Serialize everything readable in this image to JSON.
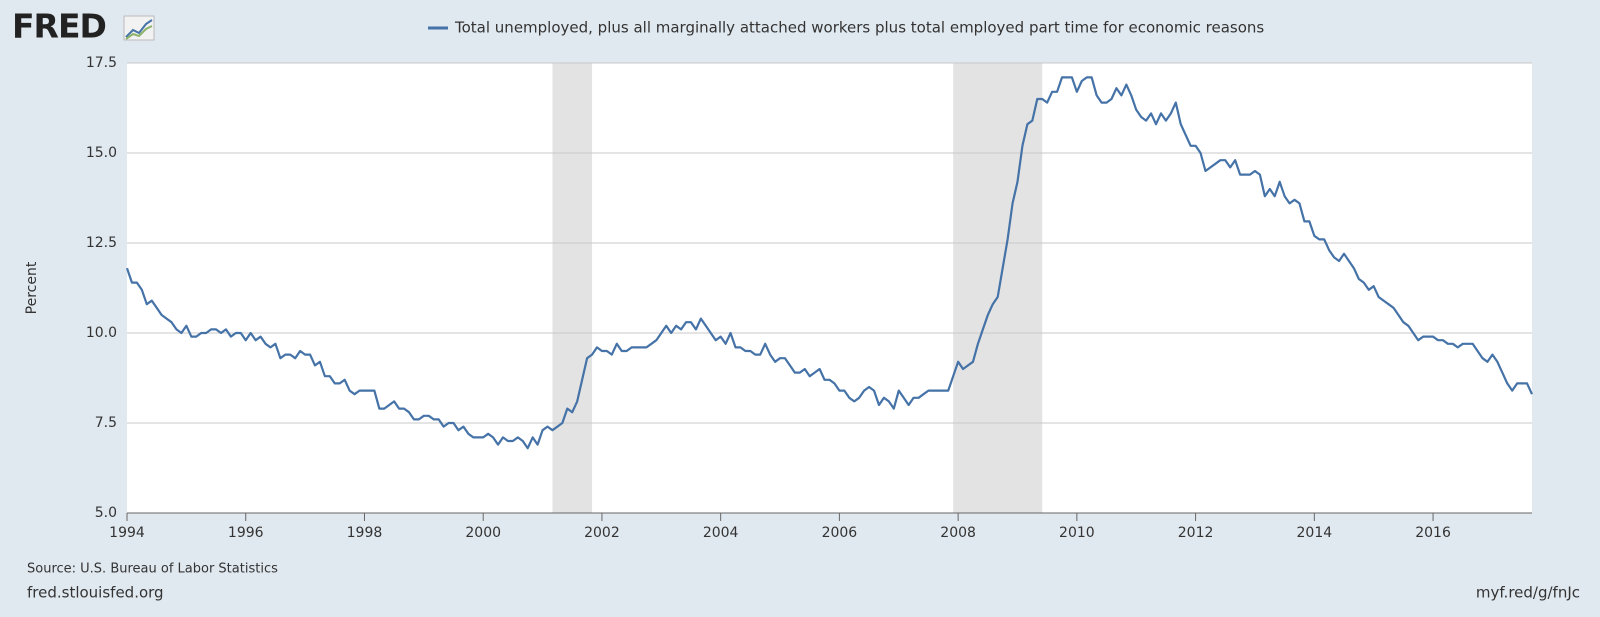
{
  "chart_data": {
    "type": "line",
    "logo": "FRED",
    "y_label": "Percent",
    "source": "Source: U.S. Bureau of Labor Statistics",
    "site": "fred.stlouisfed.org",
    "short_url": "myf.red/g/fnJc",
    "x": [
      "1994-01",
      "1994-02",
      "1994-03",
      "1994-04",
      "1994-05",
      "1994-06",
      "1994-07",
      "1994-08",
      "1994-09",
      "1994-10",
      "1994-11",
      "1994-12",
      "1995-01",
      "1995-02",
      "1995-03",
      "1995-04",
      "1995-05",
      "1995-06",
      "1995-07",
      "1995-08",
      "1995-09",
      "1995-10",
      "1995-11",
      "1995-12",
      "1996-01",
      "1996-02",
      "1996-03",
      "1996-04",
      "1996-05",
      "1996-06",
      "1996-07",
      "1996-08",
      "1996-09",
      "1996-10",
      "1996-11",
      "1996-12",
      "1997-01",
      "1997-02",
      "1997-03",
      "1997-04",
      "1997-05",
      "1997-06",
      "1997-07",
      "1997-08",
      "1997-09",
      "1997-10",
      "1997-11",
      "1997-12",
      "1998-01",
      "1998-02",
      "1998-03",
      "1998-04",
      "1998-05",
      "1998-06",
      "1998-07",
      "1998-08",
      "1998-09",
      "1998-10",
      "1998-11",
      "1998-12",
      "1999-01",
      "1999-02",
      "1999-03",
      "1999-04",
      "1999-05",
      "1999-06",
      "1999-07",
      "1999-08",
      "1999-09",
      "1999-10",
      "1999-11",
      "1999-12",
      "2000-01",
      "2000-02",
      "2000-03",
      "2000-04",
      "2000-05",
      "2000-06",
      "2000-07",
      "2000-08",
      "2000-09",
      "2000-10",
      "2000-11",
      "2000-12",
      "2001-01",
      "2001-02",
      "2001-03",
      "2001-04",
      "2001-05",
      "2001-06",
      "2001-07",
      "2001-08",
      "2001-09",
      "2001-10",
      "2001-11",
      "2001-12",
      "2002-01",
      "2002-02",
      "2002-03",
      "2002-04",
      "2002-05",
      "2002-06",
      "2002-07",
      "2002-08",
      "2002-09",
      "2002-10",
      "2002-11",
      "2002-12",
      "2003-01",
      "2003-02",
      "2003-03",
      "2003-04",
      "2003-05",
      "2003-06",
      "2003-07",
      "2003-08",
      "2003-09",
      "2003-10",
      "2003-11",
      "2003-12",
      "2004-01",
      "2004-02",
      "2004-03",
      "2004-04",
      "2004-05",
      "2004-06",
      "2004-07",
      "2004-08",
      "2004-09",
      "2004-10",
      "2004-11",
      "2004-12",
      "2005-01",
      "2005-02",
      "2005-03",
      "2005-04",
      "2005-05",
      "2005-06",
      "2005-07",
      "2005-08",
      "2005-09",
      "2005-10",
      "2005-11",
      "2005-12",
      "2006-01",
      "2006-02",
      "2006-03",
      "2006-04",
      "2006-05",
      "2006-06",
      "2006-07",
      "2006-08",
      "2006-09",
      "2006-10",
      "2006-11",
      "2006-12",
      "2007-01",
      "2007-02",
      "2007-03",
      "2007-04",
      "2007-05",
      "2007-06",
      "2007-07",
      "2007-08",
      "2007-09",
      "2007-10",
      "2007-11",
      "2007-12",
      "2008-01",
      "2008-02",
      "2008-03",
      "2008-04",
      "2008-05",
      "2008-06",
      "2008-07",
      "2008-08",
      "2008-09",
      "2008-10",
      "2008-11",
      "2008-12",
      "2009-01",
      "2009-02",
      "2009-03",
      "2009-04",
      "2009-05",
      "2009-06",
      "2009-07",
      "2009-08",
      "2009-09",
      "2009-10",
      "2009-11",
      "2009-12",
      "2010-01",
      "2010-02",
      "2010-03",
      "2010-04",
      "2010-05",
      "2010-06",
      "2010-07",
      "2010-08",
      "2010-09",
      "2010-10",
      "2010-11",
      "2010-12",
      "2011-01",
      "2011-02",
      "2011-03",
      "2011-04",
      "2011-05",
      "2011-06",
      "2011-07",
      "2011-08",
      "2011-09",
      "2011-10",
      "2011-11",
      "2011-12",
      "2012-01",
      "2012-02",
      "2012-03",
      "2012-04",
      "2012-05",
      "2012-06",
      "2012-07",
      "2012-08",
      "2012-09",
      "2012-10",
      "2012-11",
      "2012-12",
      "2013-01",
      "2013-02",
      "2013-03",
      "2013-04",
      "2013-05",
      "2013-06",
      "2013-07",
      "2013-08",
      "2013-09",
      "2013-10",
      "2013-11",
      "2013-12",
      "2014-01",
      "2014-02",
      "2014-03",
      "2014-04",
      "2014-05",
      "2014-06",
      "2014-07",
      "2014-08",
      "2014-09",
      "2014-10",
      "2014-11",
      "2014-12",
      "2015-01",
      "2015-02",
      "2015-03",
      "2015-04",
      "2015-05",
      "2015-06",
      "2015-07",
      "2015-08",
      "2015-09",
      "2015-10",
      "2015-11",
      "2015-12",
      "2016-01",
      "2016-02",
      "2016-03",
      "2016-04",
      "2016-05",
      "2016-06",
      "2016-07",
      "2016-08",
      "2016-09",
      "2016-10",
      "2016-11",
      "2016-12",
      "2017-01",
      "2017-02",
      "2017-03",
      "2017-04",
      "2017-05",
      "2017-06",
      "2017-07",
      "2017-08",
      "2017-09"
    ],
    "series": [
      {
        "name": "Total unemployed, plus all marginally attached workers plus total employed part time for economic reasons",
        "color": "#4572a7",
        "values": [
          11.8,
          11.4,
          11.4,
          11.2,
          10.8,
          10.9,
          10.7,
          10.5,
          10.4,
          10.3,
          10.1,
          10.0,
          10.2,
          9.9,
          9.9,
          10.0,
          10.0,
          10.1,
          10.1,
          10.0,
          10.1,
          9.9,
          10.0,
          10.0,
          9.8,
          10.0,
          9.8,
          9.9,
          9.7,
          9.6,
          9.7,
          9.3,
          9.4,
          9.4,
          9.3,
          9.5,
          9.4,
          9.4,
          9.1,
          9.2,
          8.8,
          8.8,
          8.6,
          8.6,
          8.7,
          8.4,
          8.3,
          8.4,
          8.4,
          8.4,
          8.4,
          7.9,
          7.9,
          8.0,
          8.1,
          7.9,
          7.9,
          7.8,
          7.6,
          7.6,
          7.7,
          7.7,
          7.6,
          7.6,
          7.4,
          7.5,
          7.5,
          7.3,
          7.4,
          7.2,
          7.1,
          7.1,
          7.1,
          7.2,
          7.1,
          6.9,
          7.1,
          7.0,
          7.0,
          7.1,
          7.0,
          6.8,
          7.1,
          6.9,
          7.3,
          7.4,
          7.3,
          7.4,
          7.5,
          7.9,
          7.8,
          8.1,
          8.7,
          9.3,
          9.4,
          9.6,
          9.5,
          9.5,
          9.4,
          9.7,
          9.5,
          9.5,
          9.6,
          9.6,
          9.6,
          9.6,
          9.7,
          9.8,
          10.0,
          10.2,
          10.0,
          10.2,
          10.1,
          10.3,
          10.3,
          10.1,
          10.4,
          10.2,
          10.0,
          9.8,
          9.9,
          9.7,
          10.0,
          9.6,
          9.6,
          9.5,
          9.5,
          9.4,
          9.4,
          9.7,
          9.4,
          9.2,
          9.3,
          9.3,
          9.1,
          8.9,
          8.9,
          9.0,
          8.8,
          8.9,
          9.0,
          8.7,
          8.7,
          8.6,
          8.4,
          8.4,
          8.2,
          8.1,
          8.2,
          8.4,
          8.5,
          8.4,
          8.0,
          8.2,
          8.1,
          7.9,
          8.4,
          8.2,
          8.0,
          8.2,
          8.2,
          8.3,
          8.4,
          8.4,
          8.4,
          8.4,
          8.4,
          8.8,
          9.2,
          9.0,
          9.1,
          9.2,
          9.7,
          10.1,
          10.5,
          10.8,
          11.0,
          11.8,
          12.6,
          13.6,
          14.2,
          15.2,
          15.8,
          15.9,
          16.5,
          16.5,
          16.4,
          16.7,
          16.7,
          17.1,
          17.1,
          17.1,
          16.7,
          17.0,
          17.1,
          17.1,
          16.6,
          16.4,
          16.4,
          16.5,
          16.8,
          16.6,
          16.9,
          16.6,
          16.2,
          16.0,
          15.9,
          16.1,
          15.8,
          16.1,
          15.9,
          16.1,
          16.4,
          15.8,
          15.5,
          15.2,
          15.2,
          15.0,
          14.5,
          14.6,
          14.7,
          14.8,
          14.8,
          14.6,
          14.8,
          14.4,
          14.4,
          14.4,
          14.5,
          14.4,
          13.8,
          14.0,
          13.8,
          14.2,
          13.8,
          13.6,
          13.7,
          13.6,
          13.1,
          13.1,
          12.7,
          12.6,
          12.6,
          12.3,
          12.1,
          12.0,
          12.2,
          12.0,
          11.8,
          11.5,
          11.4,
          11.2,
          11.3,
          11.0,
          10.9,
          10.8,
          10.7,
          10.5,
          10.3,
          10.2,
          10.0,
          9.8,
          9.9,
          9.9,
          9.9,
          9.8,
          9.8,
          9.7,
          9.7,
          9.6,
          9.7,
          9.7,
          9.7,
          9.5,
          9.3,
          9.2,
          9.4,
          9.2,
          8.9,
          8.6,
          8.4,
          8.6,
          8.6,
          8.6,
          8.3
        ]
      }
    ],
    "recessions": [
      [
        "2001-03",
        "2001-11"
      ],
      [
        "2007-12",
        "2009-06"
      ]
    ],
    "xlim": [
      "1994-01",
      "2017-09"
    ],
    "xticks": [
      1994,
      1996,
      1998,
      2000,
      2002,
      2004,
      2006,
      2008,
      2010,
      2012,
      2014,
      2016
    ],
    "ylim": [
      5,
      17.5
    ],
    "yticks": [
      {
        "value": 5,
        "label": "5.0"
      },
      7.5,
      {
        "value": 10,
        "label": "10.0"
      },
      {
        "value": 12.5,
        "label": "12.5"
      },
      {
        "value": 15,
        "label": "15.0"
      },
      17.5
    ],
    "grid": true
  }
}
